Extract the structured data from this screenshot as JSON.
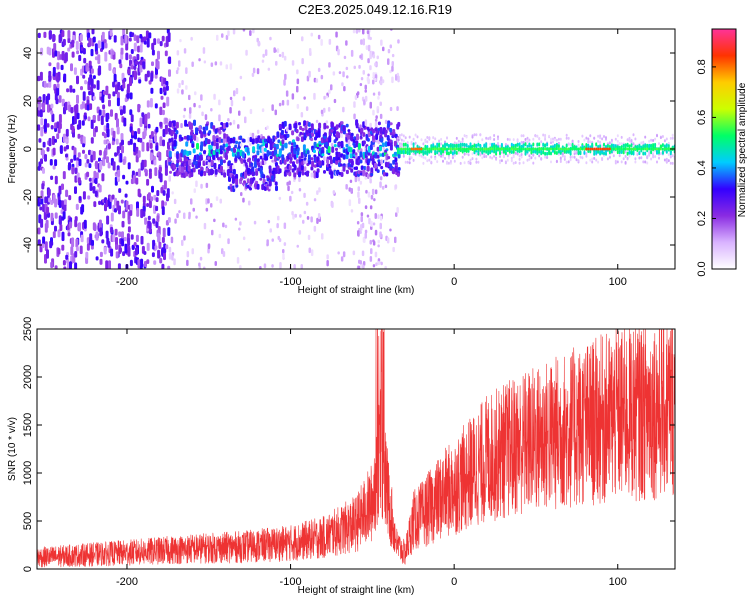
{
  "title": "C2E3.2025.049.12.16.R19",
  "chart_data": [
    {
      "type": "heatmap",
      "xlabel": "Height of straight line (km)",
      "ylabel": "Frequency (Hz)",
      "xlim": [
        -255,
        135
      ],
      "ylim": [
        -50,
        50
      ],
      "x_ticks": [
        -200,
        -100,
        0,
        100
      ],
      "x_tick_labels": [
        "-200",
        "-100",
        "0",
        "100"
      ],
      "y_ticks": [
        -40,
        -20,
        0,
        20,
        40
      ],
      "y_tick_labels": [
        "-40",
        "-20",
        "0",
        "20",
        "40"
      ],
      "colorbar": {
        "label": "Normalized spectral amplitude",
        "range": [
          0,
          0.95
        ],
        "ticks": [
          0,
          0.2,
          0.4,
          0.6,
          0.8
        ],
        "tick_labels": [
          "0.0",
          "0.2",
          "0.4",
          "0.6",
          "0.8"
        ],
        "colors": [
          "#ffffff",
          "#d9b3ff",
          "#8a2be2",
          "#3300ff",
          "#00ccff",
          "#00ff66",
          "#ccff00",
          "#ffcc00",
          "#ff3300",
          "#ff3399"
        ]
      },
      "features": [
        {
          "x_range": [
            -255,
            -175
          ],
          "y_range": [
            -50,
            50
          ],
          "description_level": 0.2
        },
        {
          "x_range": [
            -175,
            -35
          ],
          "y_range": [
            -15,
            10
          ],
          "description_level": 0.3
        },
        {
          "x_range": [
            -35,
            135
          ],
          "y_range": [
            -3,
            3
          ],
          "description_level": 0.5
        },
        {
          "x_range": [
            80,
            95
          ],
          "y_range": [
            -1.5,
            1.5
          ],
          "description_level": 0.9
        }
      ]
    },
    {
      "type": "line",
      "xlabel": "Height of straight line (km)",
      "ylabel": "SNR (10 * v/v)",
      "xlim": [
        -255,
        135
      ],
      "ylim": [
        0,
        2500
      ],
      "x_ticks": [
        -200,
        -100,
        0,
        100
      ],
      "x_tick_labels": [
        "-200",
        "-100",
        "0",
        "100"
      ],
      "y_ticks": [
        0,
        500,
        1000,
        1500,
        2000,
        2500
      ],
      "y_tick_labels": [
        "0",
        "500",
        "1000",
        "1500",
        "2000",
        "2500"
      ],
      "color": "#ee3333",
      "trend": {
        "x": [
          -255,
          -200,
          -160,
          -130,
          -100,
          -80,
          -60,
          -50,
          -45,
          -40,
          -35,
          -30,
          -25,
          -20,
          -10,
          0,
          10,
          20,
          40,
          60,
          80,
          100,
          120,
          135
        ],
        "y": [
          120,
          170,
          210,
          230,
          270,
          330,
          470,
          700,
          1350,
          700,
          250,
          160,
          500,
          560,
          720,
          860,
          1000,
          1150,
          1300,
          1400,
          1500,
          1600,
          1670,
          1720
        ]
      }
    }
  ]
}
